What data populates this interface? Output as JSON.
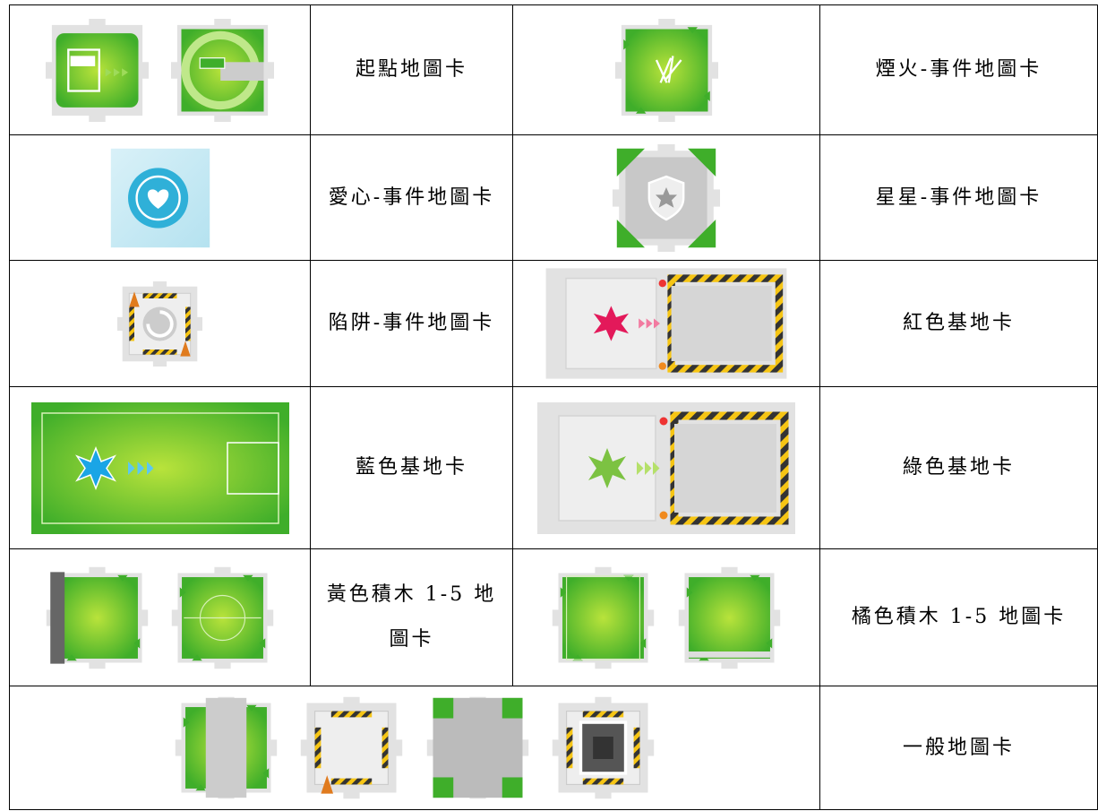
{
  "table": {
    "rows": [
      [
        "起點地圖卡",
        "煙火-事件地圖卡"
      ],
      [
        "愛心-事件地圖卡",
        "星星-事件地圖卡"
      ],
      [
        "陷阱-事件地圖卡",
        "紅色基地卡"
      ],
      [
        "藍色基地卡",
        "綠色基地卡"
      ],
      [
        "黃色積木 1-5 地圖卡",
        "橘色積木 1-5 地圖卡"
      ],
      [
        "一般地圖卡"
      ]
    ]
  }
}
